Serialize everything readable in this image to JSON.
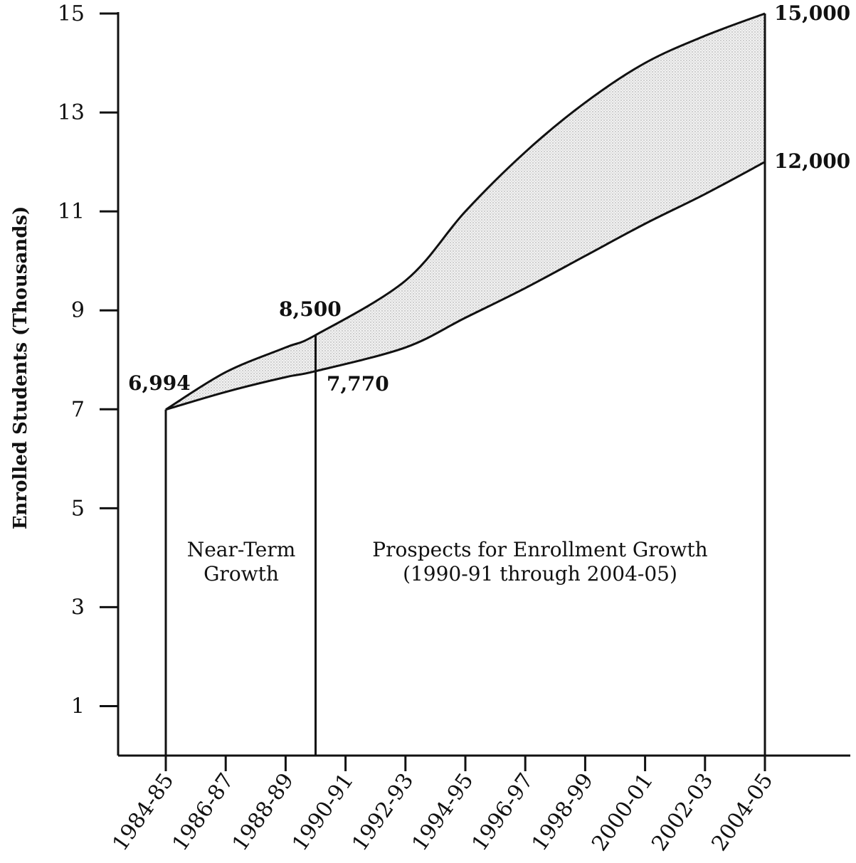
{
  "chart_data": {
    "type": "area",
    "ylabel": "Enrolled Students (Thousands)",
    "xlabel": "",
    "y_ticks": [
      1,
      3,
      5,
      7,
      9,
      11,
      13,
      15
    ],
    "ylim": [
      0,
      15
    ],
    "x_categories": [
      "1984-85",
      "1986-87",
      "1988-89",
      "1990-91",
      "1992-93",
      "1994-95",
      "1996-97",
      "1998-99",
      "2000-01",
      "2002-03",
      "2004-05"
    ],
    "series": [
      {
        "band": "upper",
        "points": [
          {
            "x": "1984-85",
            "y": 6.994
          },
          {
            "x": "1986-87",
            "y": 7.75
          },
          {
            "x": "1988-89",
            "y": 8.25
          },
          {
            "x": "1989-90",
            "y": 8.5
          },
          {
            "x": "1992-93",
            "y": 9.6
          },
          {
            "x": "1994-95",
            "y": 11.0
          },
          {
            "x": "1996-97",
            "y": 12.2
          },
          {
            "x": "1998-99",
            "y": 13.2
          },
          {
            "x": "2000-01",
            "y": 14.0
          },
          {
            "x": "2002-03",
            "y": 14.55
          },
          {
            "x": "2004-05",
            "y": 15.0
          }
        ]
      },
      {
        "band": "lower",
        "points": [
          {
            "x": "1984-85",
            "y": 6.994
          },
          {
            "x": "1986-87",
            "y": 7.35
          },
          {
            "x": "1988-89",
            "y": 7.65
          },
          {
            "x": "1989-90",
            "y": 7.77
          },
          {
            "x": "1992-93",
            "y": 8.25
          },
          {
            "x": "1994-95",
            "y": 8.85
          },
          {
            "x": "1996-97",
            "y": 9.45
          },
          {
            "x": "1998-99",
            "y": 10.1
          },
          {
            "x": "2000-01",
            "y": 10.75
          },
          {
            "x": "2002-03",
            "y": 11.35
          },
          {
            "x": "2004-05",
            "y": 12.0
          }
        ]
      }
    ],
    "dividers": [
      "1984-85",
      "1989-90",
      "2004-05"
    ],
    "annotations": {
      "start_value": "6,994",
      "upper_1990": "8,500",
      "lower_1990": "7,770",
      "upper_2005": "15,000",
      "lower_2005": "12,000"
    },
    "regions": {
      "near_term": [
        "Near-Term",
        "Growth"
      ],
      "prospects": [
        "Prospects for Enrollment Growth",
        "(1990-91 through 2004-05)"
      ]
    }
  }
}
